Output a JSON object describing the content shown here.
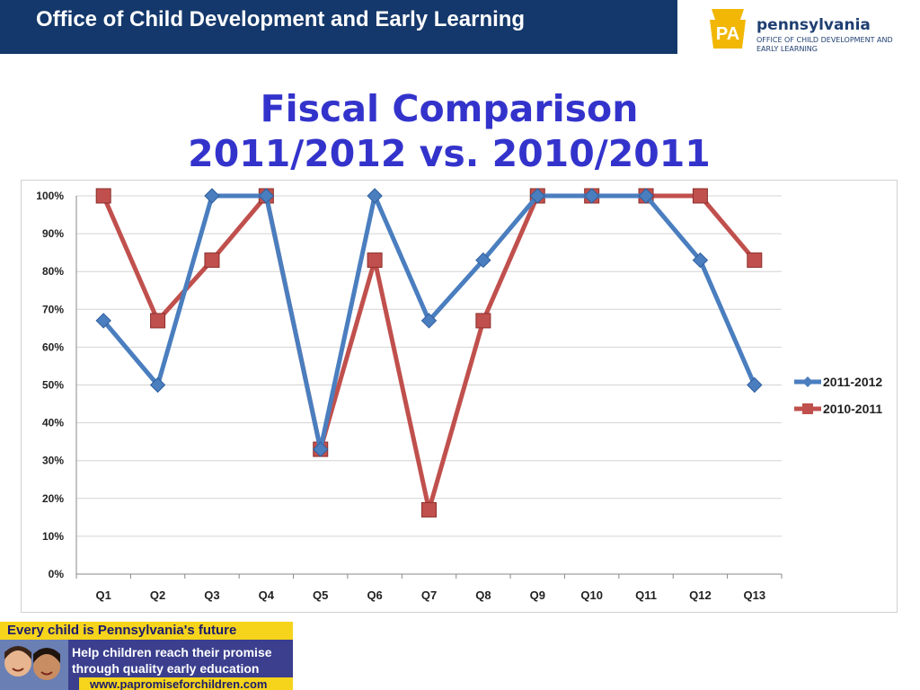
{
  "header": {
    "title": "Office of Child Development and Early Learning",
    "bar_color": "#14386b"
  },
  "logo": {
    "badge_text": "PA",
    "name": "pennsylvania",
    "subtitle": "OFFICE OF CHILD DEVELOPMENT AND EARLY LEARNING",
    "badge_color": "#f2b705"
  },
  "slide": {
    "title_line1": "Fiscal Comparison",
    "title_line2": "2011/2012 vs. 2010/2011"
  },
  "chart_data": {
    "type": "line",
    "categories": [
      "Q1",
      "Q2",
      "Q3",
      "Q4",
      "Q5",
      "Q6",
      "Q7",
      "Q8",
      "Q9",
      "Q10",
      "Q11",
      "Q12",
      "Q13"
    ],
    "series": [
      {
        "name": "2011-2012",
        "color": "#4a7ebf",
        "marker": "diamond",
        "values": [
          67,
          50,
          100,
          100,
          33,
          100,
          67,
          83,
          100,
          100,
          100,
          83,
          50
        ]
      },
      {
        "name": "2010-2011",
        "color": "#c0504d",
        "marker": "square",
        "values": [
          100,
          67,
          83,
          100,
          33,
          83,
          17,
          67,
          100,
          100,
          100,
          100,
          83
        ]
      }
    ],
    "y_ticks": [
      "0%",
      "10%",
      "20%",
      "30%",
      "40%",
      "50%",
      "60%",
      "70%",
      "80%",
      "90%",
      "100%"
    ],
    "ylim": [
      0,
      100
    ],
    "grid": true,
    "legend": "right"
  },
  "banner": {
    "tagline": "Every child is Pennsylvania's future",
    "line1": "Help children reach their promise",
    "line2": "through quality early education",
    "url": "www.papromiseforchildren.com"
  }
}
